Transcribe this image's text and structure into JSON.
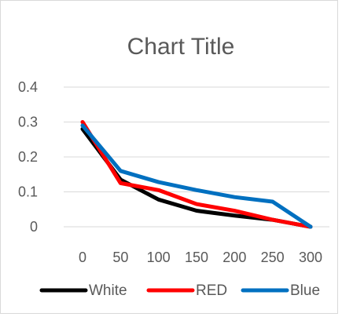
{
  "chart_data": {
    "type": "line",
    "title": "Chart Title",
    "xlabel": "",
    "ylabel": "",
    "x": [
      0,
      50,
      100,
      150,
      200,
      250,
      300
    ],
    "ylim": [
      0,
      0.4
    ],
    "y_ticks": [
      "0",
      "0.1",
      "0.2",
      "0.3",
      "0.4"
    ],
    "x_ticks": [
      "0",
      "50",
      "100",
      "150",
      "200",
      "250",
      "300"
    ],
    "grid": true,
    "legend_position": "bottom",
    "series": [
      {
        "name": "White",
        "color": "#000000",
        "values": [
          0.28,
          0.135,
          0.078,
          0.046,
          0.032,
          0.02,
          0.0
        ]
      },
      {
        "name": "RED",
        "color": "#ff0000",
        "values": [
          0.3,
          0.125,
          0.105,
          0.065,
          0.046,
          0.02,
          0.0
        ]
      },
      {
        "name": "Blue",
        "color": "#0070c0",
        "values": [
          0.29,
          0.16,
          0.128,
          0.105,
          0.085,
          0.072,
          0.0
        ]
      }
    ]
  }
}
